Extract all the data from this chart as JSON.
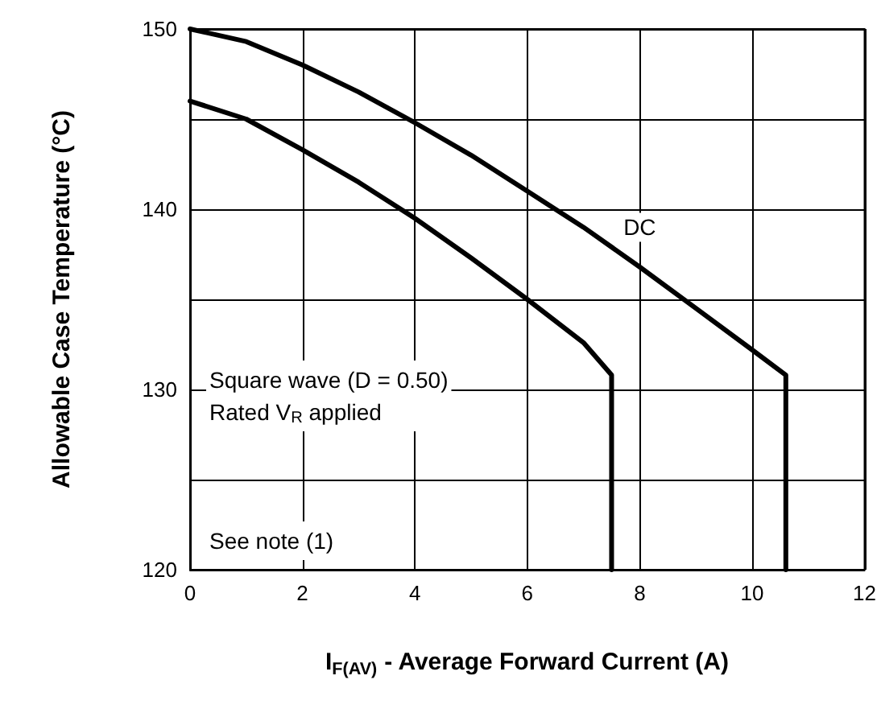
{
  "chart_data": {
    "type": "line",
    "xlabel": "I$_{F(AV)}$ - Average Forward Current (A)",
    "ylabel": "Allowable Case Temperature (°C)",
    "xlim": [
      0,
      12
    ],
    "xticks": [
      0,
      2,
      4,
      6,
      8,
      10,
      12
    ],
    "ylim": [
      120,
      150
    ],
    "yticks": [
      120,
      {
        "value": 125,
        "label": null
      },
      130,
      {
        "value": 135,
        "label": null
      },
      140,
      {
        "value": 145,
        "label": null
      },
      150
    ],
    "grid": true,
    "marker": "none",
    "line_style": "solid",
    "series": [
      {
        "color": "#000000",
        "x": [
          0,
          1,
          2,
          3,
          4,
          5,
          6,
          7,
          8,
          9,
          10,
          10.6,
          10.6
        ],
        "values": [
          150,
          149.3,
          148,
          146.5,
          144.8,
          143,
          141,
          139,
          136.8,
          134.5,
          132.2,
          130.8,
          120
        ]
      },
      {
        "color": "#000000",
        "x": [
          0,
          1,
          2,
          3,
          4,
          5,
          6,
          7,
          7.5,
          7.5
        ],
        "values": [
          146,
          145,
          143.3,
          141.5,
          139.5,
          137.3,
          135,
          132.6,
          130.8,
          120
        ]
      }
    ],
    "annotations": [
      {
        "text": "DC",
        "x": 8,
        "y": 139
      },
      "Square wave (D = 0.50)\nRated V$_{R}$ applied",
      "See note (1)"
    ]
  }
}
